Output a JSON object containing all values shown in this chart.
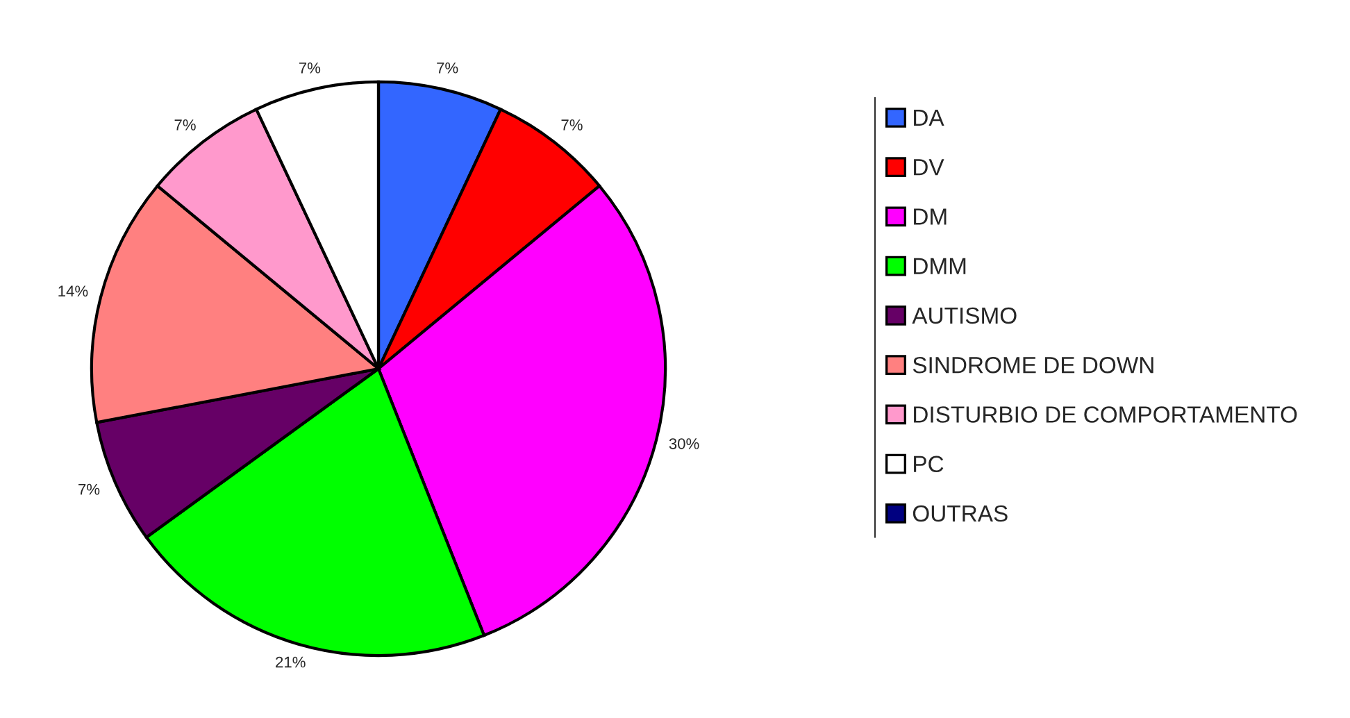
{
  "chart_data": {
    "type": "pie",
    "categories": [
      "DA",
      "DV",
      "DM",
      "DMM",
      "AUTISMO",
      "SINDROME DE DOWN",
      "DISTURBIO DE COMPORTAMENTO",
      "PC",
      "OUTRAS"
    ],
    "values": [
      7,
      7,
      30,
      21,
      7,
      14,
      7,
      7,
      0
    ],
    "value_labels": [
      "7%",
      "7%",
      "30%",
      "21%",
      "7%",
      "14%",
      "7%",
      "7%",
      null
    ],
    "colors": [
      "#3366ff",
      "#ff0000",
      "#ff00ff",
      "#00ff00",
      "#660066",
      "#ff8080",
      "#ff99cc",
      "#ffffff",
      "#000080"
    ],
    "legend": "right"
  }
}
